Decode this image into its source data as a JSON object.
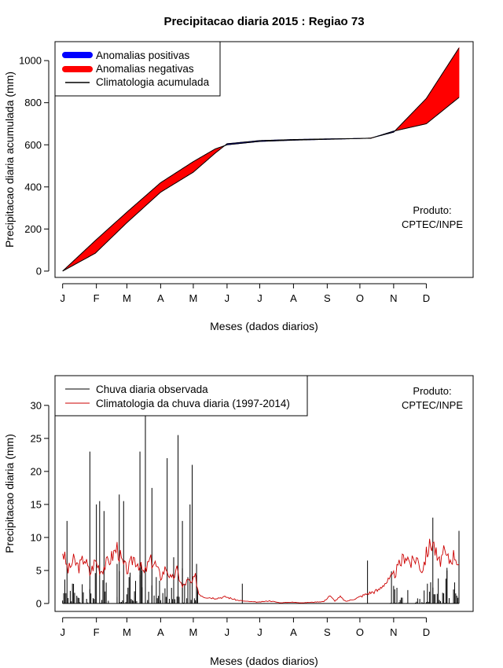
{
  "title": "Precipitacao diaria 2015 : Regiao 73",
  "colors": {
    "positive": "#0000ff",
    "negative": "#ff0000",
    "climatology_line": "#000000",
    "daily_clim": "#cc0000"
  },
  "chart_data": [
    {
      "type": "area",
      "name": "accumulated",
      "ylabel": "Precipitacao diaria acumulada (mm)",
      "xlabel": "Meses (dados diarios)",
      "x_ticks": [
        "J",
        "F",
        "M",
        "A",
        "M",
        "J",
        "J",
        "A",
        "S",
        "O",
        "N",
        "D"
      ],
      "y_ticks": [
        0,
        200,
        400,
        600,
        800,
        1000
      ],
      "ylim": [
        -30,
        1090
      ],
      "xlim_days": [
        -7,
        377
      ],
      "legend": {
        "position": "top-left",
        "items": [
          "Anomalias positivas",
          "Anomalias negativas",
          "Climatologia acumulada"
        ]
      },
      "annotation": [
        "Produto:",
        "CPTEC/INPE"
      ],
      "climatology_points": [
        [
          0,
          0
        ],
        [
          30,
          145
        ],
        [
          59,
          280
        ],
        [
          90,
          420
        ],
        [
          120,
          520
        ],
        [
          140,
          580
        ],
        [
          151,
          600
        ],
        [
          181,
          616
        ],
        [
          212,
          622
        ],
        [
          243,
          626
        ],
        [
          273,
          630
        ],
        [
          283,
          632
        ],
        [
          304,
          660
        ],
        [
          334,
          820
        ],
        [
          364,
          1060
        ]
      ],
      "observed_points": [
        [
          0,
          0
        ],
        [
          30,
          85
        ],
        [
          59,
          230
        ],
        [
          90,
          375
        ],
        [
          120,
          470
        ],
        [
          140,
          560
        ],
        [
          151,
          605
        ],
        [
          181,
          620
        ],
        [
          212,
          625
        ],
        [
          243,
          628
        ],
        [
          273,
          630
        ],
        [
          283,
          631
        ],
        [
          304,
          665
        ],
        [
          334,
          700
        ],
        [
          364,
          825
        ]
      ]
    },
    {
      "type": "bar",
      "name": "daily",
      "ylabel": "Precipitacao diaria (mm)",
      "xlabel": "Meses (dados diarios)",
      "x_ticks": [
        "J",
        "F",
        "M",
        "A",
        "M",
        "J",
        "J",
        "A",
        "S",
        "O",
        "N",
        "D"
      ],
      "y_ticks": [
        0,
        5,
        10,
        15,
        20,
        25,
        30
      ],
      "ylim": [
        -1.2,
        34.5
      ],
      "xlim_days": [
        -7,
        377
      ],
      "legend": {
        "position": "top-left",
        "items": [
          "Chuva diaria observada",
          "Climatologia da chuva diaria (1997-2014)"
        ]
      },
      "annotation": [
        "Produto:",
        "CPTEC/INPE"
      ],
      "observed_peaks": [
        [
          4,
          12.5
        ],
        [
          9,
          3
        ],
        [
          25,
          23
        ],
        [
          31,
          15
        ],
        [
          34,
          15.5
        ],
        [
          38,
          14
        ],
        [
          50,
          6
        ],
        [
          52,
          16.5
        ],
        [
          56,
          15.5
        ],
        [
          61,
          4
        ],
        [
          71,
          23
        ],
        [
          73,
          5
        ],
        [
          76,
          28.5
        ],
        [
          82,
          17.5
        ],
        [
          86,
          4
        ],
        [
          96,
          22
        ],
        [
          102,
          7
        ],
        [
          106,
          25.5
        ],
        [
          110,
          12.5
        ],
        [
          117,
          15
        ],
        [
          119,
          21
        ],
        [
          123,
          6
        ],
        [
          165,
          3
        ],
        [
          280,
          6.5
        ],
        [
          335,
          3
        ],
        [
          340,
          13
        ],
        [
          353,
          5
        ],
        [
          364,
          11
        ]
      ],
      "climatology_points": [
        [
          0,
          8
        ],
        [
          5,
          5
        ],
        [
          10,
          6.5
        ],
        [
          15,
          5.5
        ],
        [
          20,
          7
        ],
        [
          25,
          4.5
        ],
        [
          30,
          6.5
        ],
        [
          35,
          5
        ],
        [
          40,
          6
        ],
        [
          45,
          7
        ],
        [
          50,
          8.5
        ],
        [
          55,
          6
        ],
        [
          60,
          5
        ],
        [
          65,
          7
        ],
        [
          70,
          6
        ],
        [
          75,
          4.5
        ],
        [
          80,
          6.5
        ],
        [
          85,
          6
        ],
        [
          90,
          4
        ],
        [
          95,
          5.5
        ],
        [
          100,
          3.5
        ],
        [
          105,
          5
        ],
        [
          110,
          2.5
        ],
        [
          115,
          3.5
        ],
        [
          118,
          3
        ],
        [
          122,
          4
        ],
        [
          125,
          1.5
        ],
        [
          130,
          1
        ],
        [
          140,
          0.8
        ],
        [
          150,
          1
        ],
        [
          160,
          0.5
        ],
        [
          170,
          0.3
        ],
        [
          180,
          0.2
        ],
        [
          190,
          0.4
        ],
        [
          200,
          0.1
        ],
        [
          210,
          0.2
        ],
        [
          220,
          0.1
        ],
        [
          230,
          0.2
        ],
        [
          240,
          0.3
        ],
        [
          245,
          1.2
        ],
        [
          250,
          0.4
        ],
        [
          255,
          1
        ],
        [
          260,
          0.3
        ],
        [
          270,
          0.8
        ],
        [
          280,
          1.5
        ],
        [
          290,
          2
        ],
        [
          295,
          3
        ],
        [
          300,
          3.5
        ],
        [
          305,
          4.5
        ],
        [
          310,
          6
        ],
        [
          315,
          7.5
        ],
        [
          320,
          6
        ],
        [
          325,
          7
        ],
        [
          330,
          5
        ],
        [
          335,
          8
        ],
        [
          340,
          9.5
        ],
        [
          345,
          6
        ],
        [
          350,
          7.5
        ],
        [
          355,
          6.5
        ],
        [
          360,
          7.5
        ],
        [
          364,
          6
        ]
      ]
    }
  ]
}
